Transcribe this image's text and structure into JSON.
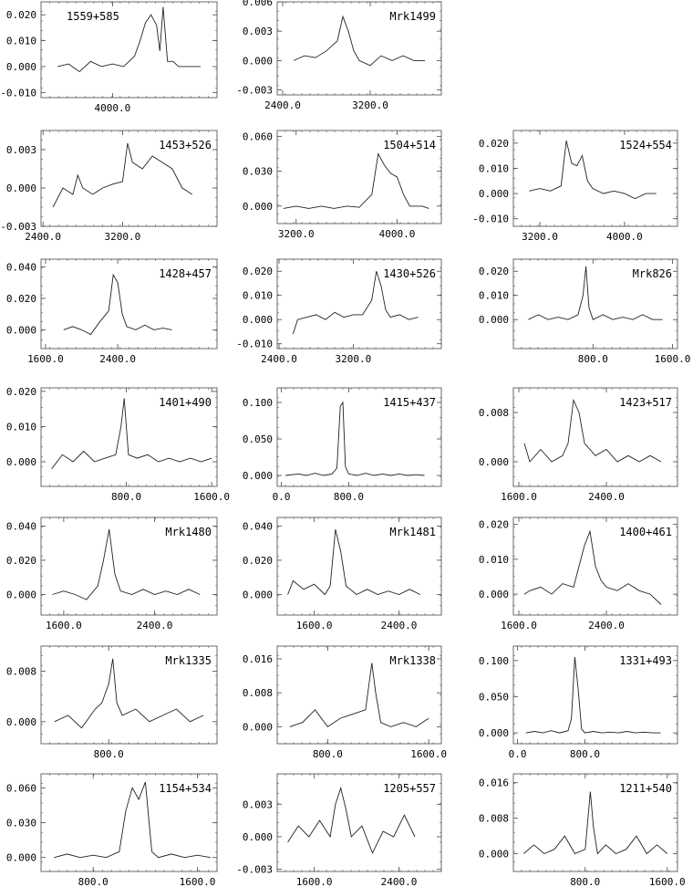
{
  "chart_data": [
    {
      "type": "line",
      "title": "1559+585",
      "xlim": [
        3350,
        4950
      ],
      "ylim": [
        -0.012,
        0.025
      ],
      "xticks": [
        4000
      ],
      "xtick_labels": [
        "4000.0"
      ],
      "yticks": [
        -0.01,
        0.0,
        0.01,
        0.02
      ],
      "ytick_labels": [
        "-0.010",
        "0.000",
        "0.010",
        "0.020"
      ],
      "x": [
        3500,
        3600,
        3700,
        3800,
        3900,
        4000,
        4100,
        4200,
        4250,
        4300,
        4350,
        4400,
        4430,
        4460,
        4500,
        4550,
        4600,
        4700,
        4800
      ],
      "y": [
        0.0,
        0.001,
        -0.002,
        0.002,
        0.0,
        0.001,
        0.0,
        0.004,
        0.01,
        0.017,
        0.02,
        0.016,
        0.006,
        0.023,
        0.002,
        0.002,
        0.0,
        0.0,
        0.0
      ]
    },
    {
      "type": "line",
      "title": "Mrk1499",
      "xlim": [
        2350,
        3850
      ],
      "ylim": [
        -0.0035,
        0.006
      ],
      "xticks": [
        2400,
        3200
      ],
      "xtick_labels": [
        "2400.0",
        "3200.0"
      ],
      "yticks": [
        -0.003,
        0.0,
        0.003,
        0.006
      ],
      "ytick_labels": [
        "-0.003",
        "0.000",
        "0.003",
        "0.006"
      ],
      "x": [
        2500,
        2600,
        2700,
        2800,
        2900,
        2950,
        3000,
        3050,
        3100,
        3200,
        3300,
        3400,
        3500,
        3600,
        3700
      ],
      "y": [
        0.0,
        0.0005,
        0.0003,
        0.001,
        0.002,
        0.0045,
        0.003,
        0.001,
        0.0,
        -0.0005,
        0.0005,
        0.0,
        0.0005,
        0.0,
        0.0
      ]
    },
    {
      "type": "line",
      "title": "1453+526",
      "xlim": [
        2380,
        4150
      ],
      "ylim": [
        -0.003,
        0.0045
      ],
      "xticks": [
        2400,
        3200
      ],
      "xtick_labels": [
        "2400.0",
        "3200.0"
      ],
      "yticks": [
        -0.003,
        0.0,
        0.003
      ],
      "ytick_labels": [
        "-0.003",
        "0.000",
        "0.003"
      ],
      "x": [
        2500,
        2600,
        2700,
        2750,
        2800,
        2900,
        3000,
        3100,
        3200,
        3250,
        3300,
        3400,
        3500,
        3600,
        3700,
        3800,
        3900
      ],
      "y": [
        -0.0015,
        0.0,
        -0.0005,
        0.001,
        0.0,
        -0.0005,
        0.0,
        0.0003,
        0.0005,
        0.0035,
        0.002,
        0.0015,
        0.0025,
        0.002,
        0.0015,
        0.0,
        -0.0005
      ]
    },
    {
      "type": "line",
      "title": "1504+514",
      "xlim": [
        3050,
        4350
      ],
      "ylim": [
        -0.015,
        0.065
      ],
      "xticks": [
        3200,
        4000
      ],
      "xtick_labels": [
        "3200.0",
        "4000.0"
      ],
      "yticks": [
        0.0,
        0.03,
        0.06
      ],
      "ytick_labels": [
        "0.000",
        "0.030",
        "0.060"
      ],
      "x": [
        3100,
        3200,
        3300,
        3400,
        3500,
        3600,
        3700,
        3800,
        3850,
        3900,
        3950,
        4000,
        4050,
        4100,
        4200,
        4250
      ],
      "y": [
        -0.002,
        0.0,
        -0.002,
        0.0,
        -0.002,
        0.0,
        -0.001,
        0.01,
        0.045,
        0.035,
        0.028,
        0.025,
        0.01,
        0.0,
        0.0,
        -0.002
      ]
    },
    {
      "type": "line",
      "title": "1524+554",
      "xlim": [
        2950,
        4500
      ],
      "ylim": [
        -0.013,
        0.025
      ],
      "xticks": [
        3200,
        4000
      ],
      "xtick_labels": [
        "3200.0",
        "4000.0"
      ],
      "yticks": [
        -0.01,
        0.0,
        0.01,
        0.02
      ],
      "ytick_labels": [
        "-0.010",
        "0.000",
        "0.010",
        "0.020"
      ],
      "x": [
        3100,
        3200,
        3300,
        3400,
        3450,
        3500,
        3550,
        3600,
        3650,
        3700,
        3800,
        3900,
        4000,
        4100,
        4200,
        4300
      ],
      "y": [
        0.001,
        0.002,
        0.001,
        0.003,
        0.021,
        0.012,
        0.011,
        0.015,
        0.005,
        0.002,
        0.0,
        0.001,
        0.0,
        -0.002,
        0.0,
        0.0
      ]
    },
    {
      "type": "line",
      "title": "1428+457",
      "xlim": [
        1550,
        3500
      ],
      "ylim": [
        -0.012,
        0.045
      ],
      "xticks": [
        1600,
        2400
      ],
      "xtick_labels": [
        "1600.0",
        "2400.0"
      ],
      "yticks": [
        0.0,
        0.02,
        0.04
      ],
      "ytick_labels": [
        "0.000",
        "0.020",
        "0.040"
      ],
      "x": [
        1800,
        1900,
        2000,
        2100,
        2200,
        2300,
        2350,
        2400,
        2450,
        2500,
        2600,
        2700,
        2800,
        2900,
        3000
      ],
      "y": [
        0.0,
        0.002,
        0.0,
        -0.003,
        0.005,
        0.012,
        0.035,
        0.03,
        0.01,
        0.002,
        0.0,
        0.003,
        0.0,
        0.001,
        0.0
      ]
    },
    {
      "type": "line",
      "title": "1430+526",
      "xlim": [
        2380,
        4150
      ],
      "ylim": [
        -0.012,
        0.025
      ],
      "xticks": [
        2400,
        3200
      ],
      "xtick_labels": [
        "2400.0",
        "3200.0"
      ],
      "yticks": [
        -0.01,
        0.0,
        0.01,
        0.02
      ],
      "ytick_labels": [
        "-0.010",
        "0.000",
        "0.010",
        "0.020"
      ],
      "x": [
        2550,
        2600,
        2700,
        2800,
        2900,
        3000,
        3100,
        3200,
        3300,
        3400,
        3450,
        3500,
        3550,
        3600,
        3700,
        3800,
        3900
      ],
      "y": [
        -0.006,
        0.0,
        0.001,
        0.002,
        0.0,
        0.003,
        0.001,
        0.002,
        0.002,
        0.008,
        0.02,
        0.014,
        0.004,
        0.001,
        0.002,
        0.0,
        0.001
      ]
    },
    {
      "type": "line",
      "title": "Mrk826",
      "xlim": [
        0,
        1650
      ],
      "ylim": [
        -0.012,
        0.025
      ],
      "xticks": [
        800,
        1600
      ],
      "xtick_labels": [
        "800.0",
        "1600.0"
      ],
      "yticks": [
        0.0,
        0.01,
        0.02
      ],
      "ytick_labels": [
        "0.000",
        "0.010",
        "0.020"
      ],
      "x": [
        150,
        250,
        350,
        450,
        550,
        650,
        700,
        730,
        760,
        800,
        900,
        1000,
        1100,
        1200,
        1300,
        1400,
        1500
      ],
      "y": [
        0.0,
        0.002,
        0.0,
        0.001,
        0.0,
        0.002,
        0.01,
        0.022,
        0.005,
        0.0,
        0.002,
        0.0,
        0.001,
        0.0,
        0.002,
        0.0,
        0.0
      ]
    },
    {
      "type": "line",
      "title": "1401+490",
      "xlim": [
        0,
        1650
      ],
      "ylim": [
        -0.007,
        0.021
      ],
      "xticks": [
        800,
        1600
      ],
      "xtick_labels": [
        "800.0",
        "1600.0"
      ],
      "yticks": [
        0.0,
        0.01,
        0.02
      ],
      "ytick_labels": [
        "0.000",
        "0.010",
        "0.020"
      ],
      "x": [
        100,
        200,
        300,
        400,
        500,
        600,
        700,
        750,
        780,
        820,
        900,
        1000,
        1100,
        1200,
        1300,
        1400,
        1500,
        1600
      ],
      "y": [
        -0.002,
        0.002,
        0.0,
        0.003,
        0.0,
        0.001,
        0.002,
        0.01,
        0.018,
        0.002,
        0.001,
        0.002,
        0.0,
        0.001,
        0.0,
        0.001,
        0.0,
        0.001
      ]
    },
    {
      "type": "line",
      "title": "1415+437",
      "xlim": [
        -50,
        1900
      ],
      "ylim": [
        -0.015,
        0.12
      ],
      "xticks": [
        0,
        800
      ],
      "xtick_labels": [
        "0.0",
        "800.0"
      ],
      "yticks": [
        0.0,
        0.05,
        0.1
      ],
      "ytick_labels": [
        "0.000",
        "0.050",
        "0.100"
      ],
      "x": [
        50,
        200,
        300,
        400,
        500,
        600,
        660,
        700,
        730,
        760,
        800,
        900,
        1000,
        1100,
        1200,
        1300,
        1400,
        1500,
        1600,
        1700
      ],
      "y": [
        0.0,
        0.002,
        0.0,
        0.003,
        0.0,
        0.002,
        0.01,
        0.095,
        0.1,
        0.012,
        0.002,
        0.0,
        0.003,
        0.0,
        0.002,
        0.0,
        0.002,
        0.0,
        0.001,
        0.0
      ]
    },
    {
      "type": "line",
      "title": "1423+517",
      "xlim": [
        1550,
        3050
      ],
      "ylim": [
        -0.004,
        0.012
      ],
      "xticks": [
        1600,
        2400
      ],
      "xtick_labels": [
        "1600.0",
        "2400.0"
      ],
      "yticks": [
        0.0,
        0.008
      ],
      "ytick_labels": [
        "0.000",
        "0.008"
      ],
      "x": [
        1650,
        1700,
        1800,
        1900,
        2000,
        2050,
        2100,
        2150,
        2200,
        2300,
        2400,
        2500,
        2600,
        2700,
        2800,
        2900
      ],
      "y": [
        0.003,
        0.0,
        0.002,
        0.0,
        0.001,
        0.003,
        0.01,
        0.008,
        0.003,
        0.001,
        0.002,
        0.0,
        0.001,
        0.0,
        0.001,
        0.0
      ]
    },
    {
      "type": "line",
      "title": "Mrk1480",
      "xlim": [
        1400,
        2950
      ],
      "ylim": [
        -0.012,
        0.045
      ],
      "xticks": [
        1600,
        2400
      ],
      "xtick_labels": [
        "1600.0",
        "2400.0"
      ],
      "yticks": [
        0.0,
        0.02,
        0.04
      ],
      "ytick_labels": [
        "0.000",
        "0.020",
        "0.040"
      ],
      "x": [
        1500,
        1600,
        1700,
        1800,
        1900,
        1950,
        2000,
        2050,
        2100,
        2200,
        2300,
        2400,
        2500,
        2600,
        2700,
        2800
      ],
      "y": [
        0.0,
        0.002,
        0.0,
        -0.003,
        0.005,
        0.02,
        0.038,
        0.012,
        0.002,
        0.0,
        0.003,
        0.0,
        0.002,
        0.0,
        0.003,
        0.0
      ]
    },
    {
      "type": "line",
      "title": "Mrk1481",
      "xlim": [
        1250,
        2800
      ],
      "ylim": [
        -0.012,
        0.045
      ],
      "xticks": [
        1600,
        2400
      ],
      "xtick_labels": [
        "1600.0",
        "2400.0"
      ],
      "yticks": [
        0.0,
        0.02,
        0.04
      ],
      "ytick_labels": [
        "0.000",
        "0.020",
        "0.040"
      ],
      "x": [
        1350,
        1400,
        1500,
        1600,
        1700,
        1750,
        1800,
        1850,
        1900,
        2000,
        2100,
        2200,
        2300,
        2400,
        2500,
        2600
      ],
      "y": [
        0.0,
        0.008,
        0.003,
        0.006,
        0.0,
        0.005,
        0.038,
        0.025,
        0.005,
        0.0,
        0.003,
        0.0,
        0.002,
        0.0,
        0.003,
        0.0
      ]
    },
    {
      "type": "line",
      "title": "1400+461",
      "xlim": [
        1550,
        3050
      ],
      "ylim": [
        -0.006,
        0.022
      ],
      "xticks": [
        1600,
        2400
      ],
      "xtick_labels": [
        "1600.0",
        "2400.0"
      ],
      "yticks": [
        0.0,
        0.01,
        0.02
      ],
      "ytick_labels": [
        "0.000",
        "0.010",
        "0.020"
      ],
      "x": [
        1650,
        1700,
        1800,
        1900,
        2000,
        2100,
        2150,
        2200,
        2250,
        2300,
        2350,
        2400,
        2500,
        2600,
        2700,
        2800,
        2900
      ],
      "y": [
        0.0,
        0.001,
        0.002,
        0.0,
        0.003,
        0.002,
        0.008,
        0.014,
        0.018,
        0.008,
        0.004,
        0.002,
        0.001,
        0.003,
        0.001,
        0.0,
        -0.003
      ]
    },
    {
      "type": "line",
      "title": "Mrk1335",
      "xlim": [
        300,
        1600
      ],
      "ylim": [
        -0.0035,
        0.012
      ],
      "xticks": [
        800
      ],
      "xtick_labels": [
        "800.0"
      ],
      "yticks": [
        0.0,
        0.008
      ],
      "ytick_labels": [
        "0.000",
        "0.008"
      ],
      "x": [
        400,
        500,
        600,
        700,
        750,
        800,
        830,
        860,
        900,
        1000,
        1100,
        1200,
        1300,
        1400,
        1500
      ],
      "y": [
        0.0,
        0.001,
        -0.001,
        0.002,
        0.003,
        0.006,
        0.01,
        0.003,
        0.001,
        0.002,
        0.0,
        0.001,
        0.002,
        0.0,
        0.001
      ]
    },
    {
      "type": "line",
      "title": "Mrk1338",
      "xlim": [
        400,
        1700
      ],
      "ylim": [
        -0.004,
        0.019
      ],
      "xticks": [
        800,
        1600
      ],
      "xtick_labels": [
        "800.0",
        "1600.0"
      ],
      "yticks": [
        0.0,
        0.008,
        0.016
      ],
      "ytick_labels": [
        "0.000",
        "0.008",
        "0.016"
      ],
      "x": [
        500,
        600,
        700,
        800,
        900,
        1000,
        1100,
        1150,
        1180,
        1220,
        1300,
        1400,
        1500,
        1600
      ],
      "y": [
        0.0,
        0.001,
        0.004,
        0.0,
        0.002,
        0.003,
        0.004,
        0.015,
        0.008,
        0.001,
        0.0,
        0.001,
        0.0,
        0.002
      ]
    },
    {
      "type": "line",
      "title": "1331+493",
      "xlim": [
        -50,
        1900
      ],
      "ylim": [
        -0.015,
        0.12
      ],
      "xticks": [
        0,
        800
      ],
      "xtick_labels": [
        "0.0",
        "800.0"
      ],
      "yticks": [
        0.0,
        0.05,
        0.1
      ],
      "ytick_labels": [
        "0.000",
        "0.050",
        "0.100"
      ],
      "x": [
        100,
        200,
        300,
        400,
        500,
        600,
        640,
        680,
        720,
        760,
        800,
        900,
        1000,
        1100,
        1200,
        1300,
        1400,
        1500,
        1600,
        1700
      ],
      "y": [
        0.0,
        0.002,
        0.0,
        0.003,
        0.0,
        0.003,
        0.02,
        0.105,
        0.06,
        0.005,
        0.0,
        0.002,
        0.0,
        0.001,
        0.0,
        0.002,
        0.0,
        0.001,
        0.0,
        0.0
      ]
    },
    {
      "type": "line",
      "title": "1154+534",
      "xlim": [
        400,
        1750
      ],
      "ylim": [
        -0.012,
        0.072
      ],
      "xticks": [
        800,
        1600
      ],
      "xtick_labels": [
        "800.0",
        "1600.0"
      ],
      "yticks": [
        0.0,
        0.03,
        0.06
      ],
      "ytick_labels": [
        "0.000",
        "0.030",
        "0.060"
      ],
      "x": [
        500,
        600,
        700,
        800,
        900,
        1000,
        1050,
        1100,
        1150,
        1200,
        1250,
        1300,
        1400,
        1500,
        1600,
        1700
      ],
      "y": [
        0.0,
        0.003,
        0.0,
        0.002,
        0.0,
        0.005,
        0.04,
        0.06,
        0.05,
        0.065,
        0.005,
        0.0,
        0.003,
        0.0,
        0.002,
        0.0
      ]
    },
    {
      "type": "line",
      "title": "1205+557",
      "xlim": [
        1250,
        2800
      ],
      "ylim": [
        -0.0032,
        0.0058
      ],
      "xticks": [
        1600,
        2400
      ],
      "xtick_labels": [
        "1600.0",
        "2400.0"
      ],
      "yticks": [
        -0.003,
        0.0,
        0.003
      ],
      "ytick_labels": [
        "-0.003",
        "0.000",
        "0.003"
      ],
      "x": [
        1350,
        1450,
        1550,
        1650,
        1750,
        1800,
        1850,
        1900,
        1950,
        2050,
        2150,
        2250,
        2350,
        2450,
        2550
      ],
      "y": [
        -0.0005,
        0.001,
        0.0,
        0.0015,
        0.0,
        0.003,
        0.0045,
        0.0025,
        0.0,
        0.001,
        -0.0015,
        0.0005,
        0.0,
        0.002,
        0.0
      ]
    },
    {
      "type": "line",
      "title": "1211+540",
      "xlim": [
        100,
        1700
      ],
      "ylim": [
        -0.004,
        0.018
      ],
      "xticks": [
        800,
        1600
      ],
      "xtick_labels": [
        "800.0",
        "1600.0"
      ],
      "yticks": [
        0.0,
        0.008,
        0.016
      ],
      "ytick_labels": [
        "0.000",
        "0.008",
        "0.016"
      ],
      "x": [
        200,
        300,
        400,
        500,
        600,
        700,
        800,
        850,
        880,
        920,
        1000,
        1100,
        1200,
        1300,
        1400,
        1500,
        1600
      ],
      "y": [
        0.0,
        0.002,
        0.0,
        0.001,
        0.004,
        0.0,
        0.001,
        0.014,
        0.006,
        0.0,
        0.002,
        0.0,
        0.001,
        0.004,
        0.0,
        0.002,
        0.0
      ]
    }
  ]
}
